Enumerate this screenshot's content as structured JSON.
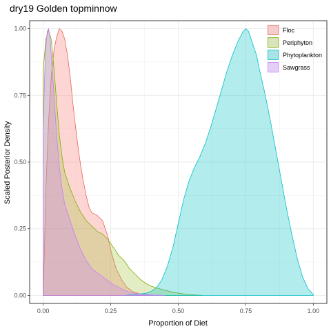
{
  "chart_data": {
    "type": "area",
    "title": "dry19 Golden topminnow",
    "xlabel": "Proportion of Diet",
    "ylabel": "Scaled Posterior Density",
    "xlim": [
      -0.05,
      1.05
    ],
    "ylim": [
      -0.03,
      1.03
    ],
    "x_ticks": [
      "0.00",
      "0.25",
      "0.50",
      "0.75",
      "1.00"
    ],
    "y_ticks": [
      "0.00",
      "0.25",
      "0.50",
      "0.75",
      "1.00"
    ],
    "grid": true,
    "legend_position": "top-right",
    "series": [
      {
        "name": "Floc",
        "fill": "#F8766D",
        "stroke": "#E8625A",
        "points": [
          [
            0.0,
            0.0
          ],
          [
            0.005,
            0.18
          ],
          [
            0.01,
            0.4
          ],
          [
            0.02,
            0.65
          ],
          [
            0.03,
            0.82
          ],
          [
            0.04,
            0.92
          ],
          [
            0.05,
            0.97
          ],
          [
            0.06,
            1.0
          ],
          [
            0.07,
            0.99
          ],
          [
            0.08,
            0.96
          ],
          [
            0.09,
            0.9
          ],
          [
            0.1,
            0.82
          ],
          [
            0.11,
            0.72
          ],
          [
            0.12,
            0.63
          ],
          [
            0.13,
            0.55
          ],
          [
            0.14,
            0.48
          ],
          [
            0.15,
            0.42
          ],
          [
            0.16,
            0.37
          ],
          [
            0.17,
            0.33
          ],
          [
            0.18,
            0.31
          ],
          [
            0.2,
            0.3
          ],
          [
            0.22,
            0.28
          ],
          [
            0.24,
            0.22
          ],
          [
            0.25,
            0.17
          ],
          [
            0.27,
            0.1
          ],
          [
            0.29,
            0.06
          ],
          [
            0.31,
            0.03
          ],
          [
            0.33,
            0.015
          ],
          [
            0.36,
            0.005
          ],
          [
            0.4,
            0.0
          ]
        ]
      },
      {
        "name": "Periphyton",
        "fill": "#A3C43B",
        "stroke": "#7CAE00",
        "points": [
          [
            0.0,
            0.0
          ],
          [
            0.0,
            0.85
          ],
          [
            0.005,
            0.9
          ],
          [
            0.01,
            0.96
          ],
          [
            0.02,
            0.995
          ],
          [
            0.03,
            0.96
          ],
          [
            0.04,
            0.85
          ],
          [
            0.05,
            0.72
          ],
          [
            0.06,
            0.6
          ],
          [
            0.07,
            0.52
          ],
          [
            0.08,
            0.46
          ],
          [
            0.1,
            0.4
          ],
          [
            0.12,
            0.35
          ],
          [
            0.14,
            0.31
          ],
          [
            0.16,
            0.28
          ],
          [
            0.18,
            0.26
          ],
          [
            0.2,
            0.24
          ],
          [
            0.22,
            0.23
          ],
          [
            0.24,
            0.21
          ],
          [
            0.26,
            0.18
          ],
          [
            0.28,
            0.15
          ],
          [
            0.3,
            0.13
          ],
          [
            0.32,
            0.1
          ],
          [
            0.34,
            0.08
          ],
          [
            0.36,
            0.06
          ],
          [
            0.38,
            0.045
          ],
          [
            0.4,
            0.035
          ],
          [
            0.42,
            0.028
          ],
          [
            0.45,
            0.02
          ],
          [
            0.48,
            0.012
          ],
          [
            0.52,
            0.006
          ],
          [
            0.56,
            0.002
          ],
          [
            0.59,
            0.0
          ]
        ]
      },
      {
        "name": "Phytoplankton",
        "fill": "#00BFC4",
        "stroke": "#00BFC4",
        "points": [
          [
            0.3,
            0.0
          ],
          [
            0.35,
            0.005
          ],
          [
            0.38,
            0.008
          ],
          [
            0.4,
            0.015
          ],
          [
            0.42,
            0.03
          ],
          [
            0.44,
            0.06
          ],
          [
            0.46,
            0.11
          ],
          [
            0.48,
            0.18
          ],
          [
            0.5,
            0.27
          ],
          [
            0.52,
            0.36
          ],
          [
            0.54,
            0.43
          ],
          [
            0.56,
            0.48
          ],
          [
            0.58,
            0.52
          ],
          [
            0.6,
            0.57
          ],
          [
            0.62,
            0.63
          ],
          [
            0.64,
            0.7
          ],
          [
            0.66,
            0.77
          ],
          [
            0.68,
            0.84
          ],
          [
            0.7,
            0.9
          ],
          [
            0.72,
            0.95
          ],
          [
            0.74,
            0.99
          ],
          [
            0.75,
            1.0
          ],
          [
            0.76,
            0.99
          ],
          [
            0.77,
            0.96
          ],
          [
            0.79,
            0.9
          ],
          [
            0.8,
            0.85
          ],
          [
            0.82,
            0.76
          ],
          [
            0.84,
            0.66
          ],
          [
            0.86,
            0.55
          ],
          [
            0.88,
            0.44
          ],
          [
            0.9,
            0.33
          ],
          [
            0.92,
            0.23
          ],
          [
            0.94,
            0.14
          ],
          [
            0.96,
            0.07
          ],
          [
            0.98,
            0.025
          ],
          [
            1.0,
            0.003
          ]
        ]
      },
      {
        "name": "Sawgrass",
        "fill": "#C77CFF",
        "stroke": "#C77CFF",
        "points": [
          [
            0.0,
            0.0
          ],
          [
            0.0,
            0.62
          ],
          [
            0.005,
            0.8
          ],
          [
            0.01,
            0.93
          ],
          [
            0.015,
            0.99
          ],
          [
            0.02,
            1.0
          ],
          [
            0.025,
            0.97
          ],
          [
            0.03,
            0.9
          ],
          [
            0.04,
            0.75
          ],
          [
            0.05,
            0.6
          ],
          [
            0.06,
            0.48
          ],
          [
            0.07,
            0.4
          ],
          [
            0.08,
            0.34
          ],
          [
            0.1,
            0.28
          ],
          [
            0.12,
            0.22
          ],
          [
            0.14,
            0.17
          ],
          [
            0.16,
            0.13
          ],
          [
            0.18,
            0.1
          ],
          [
            0.2,
            0.085
          ],
          [
            0.22,
            0.07
          ],
          [
            0.24,
            0.055
          ],
          [
            0.26,
            0.04
          ],
          [
            0.28,
            0.03
          ],
          [
            0.3,
            0.02
          ],
          [
            0.32,
            0.012
          ],
          [
            0.35,
            0.006
          ],
          [
            0.4,
            0.002
          ],
          [
            0.45,
            0.0
          ]
        ]
      }
    ]
  }
}
